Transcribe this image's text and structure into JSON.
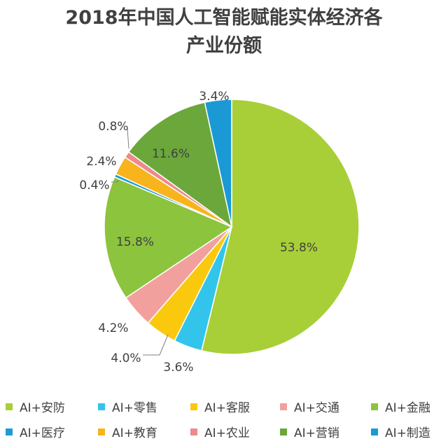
{
  "chart_data": {
    "type": "pie",
    "title": [
      "2018年中国人工智能赋能实体经济各",
      "产业份额"
    ],
    "slices": [
      {
        "name": "AI+安防",
        "value": 53.8,
        "label": "53.8%",
        "color": "#a8cf38"
      },
      {
        "name": "AI+零售",
        "value": 3.6,
        "label": "3.6%",
        "color": "#33c4ec"
      },
      {
        "name": "AI+客服",
        "value": 4.0,
        "label": "4.0%",
        "color": "#fac90e"
      },
      {
        "name": "AI+交通",
        "value": 4.2,
        "label": "4.2%",
        "color": "#f2a09e"
      },
      {
        "name": "AI+金融",
        "value": 15.8,
        "label": "15.8%",
        "color": "#8cc43e"
      },
      {
        "name": "AI+医疗",
        "value": 0.4,
        "label": "0.4%",
        "color": "#1e9ad6"
      },
      {
        "name": "AI+教育",
        "value": 2.4,
        "label": "2.4%",
        "color": "#f8b41c"
      },
      {
        "name": "AI+农业",
        "value": 0.8,
        "label": "0.8%",
        "color": "#ec8a8c"
      },
      {
        "name": "AI+营销",
        "value": 11.6,
        "label": "11.6%",
        "color": "#6ba73b"
      },
      {
        "name": "AI+制造",
        "value": 3.4,
        "label": "3.4%",
        "color": "#1b99d5"
      }
    ],
    "legend_position": "bottom"
  }
}
